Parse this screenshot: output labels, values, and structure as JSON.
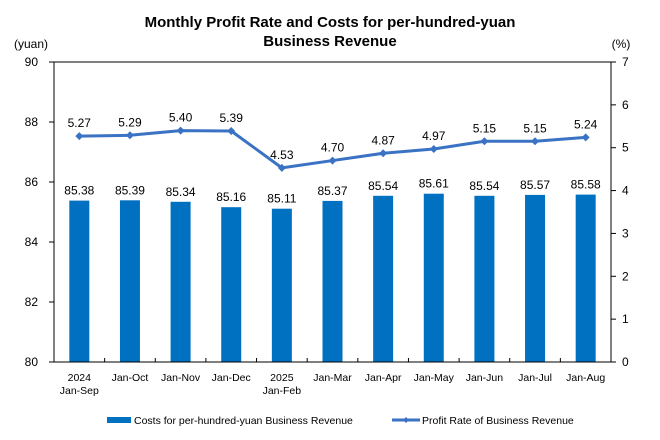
{
  "chart_data": {
    "type": "bar+line",
    "title": "Monthly Profit Rate and Costs for per-hundred-yuan Business Revenue",
    "title_lines": [
      "Monthly Profit Rate and Costs for per-hundred-yuan",
      "Business Revenue"
    ],
    "categories": [
      [
        "2024",
        "Jan-Sep"
      ],
      [
        "Jan-Oct"
      ],
      [
        "Jan-Nov"
      ],
      [
        "Jan-Dec"
      ],
      [
        "2025",
        "Jan-Feb"
      ],
      [
        "Jan-Mar"
      ],
      [
        "Jan-Apr"
      ],
      [
        "Jan-May"
      ],
      [
        "Jan-Jun"
      ],
      [
        "Jan-Jul"
      ],
      [
        "Jan-Aug"
      ]
    ],
    "y_left": {
      "unit": "(yuan)",
      "range": [
        80,
        90
      ],
      "ticks": [
        80,
        82,
        84,
        86,
        88,
        90
      ]
    },
    "y_right": {
      "unit": "(%)",
      "range": [
        0,
        7
      ],
      "ticks": [
        0,
        1,
        2,
        3,
        4,
        5,
        6,
        7
      ]
    },
    "series": [
      {
        "name": "Costs for per-hundred-yuan Business Revenue",
        "type": "bar",
        "axis": "left",
        "color": "#0070C0",
        "values": [
          85.38,
          85.39,
          85.34,
          85.16,
          85.11,
          85.37,
          85.54,
          85.61,
          85.54,
          85.57,
          85.58
        ],
        "labels": [
          "85.38",
          "85.39",
          "85.34",
          "85.16",
          "85.11",
          "85.37",
          "85.54",
          "85.61",
          "85.54",
          "85.57",
          "85.58"
        ]
      },
      {
        "name": "Profit Rate of Business Revenue",
        "type": "line",
        "axis": "right",
        "color": "#3A72C4",
        "marker": "diamond",
        "values": [
          5.27,
          5.29,
          5.4,
          5.39,
          4.53,
          4.7,
          4.87,
          4.97,
          5.15,
          5.15,
          5.24
        ],
        "labels": [
          "5.27",
          "5.29",
          "5.40",
          "5.39",
          "4.53",
          "4.70",
          "4.87",
          "4.97",
          "5.15",
          "5.15",
          "5.24"
        ]
      }
    ],
    "grid": false,
    "legend_position": "bottom"
  }
}
